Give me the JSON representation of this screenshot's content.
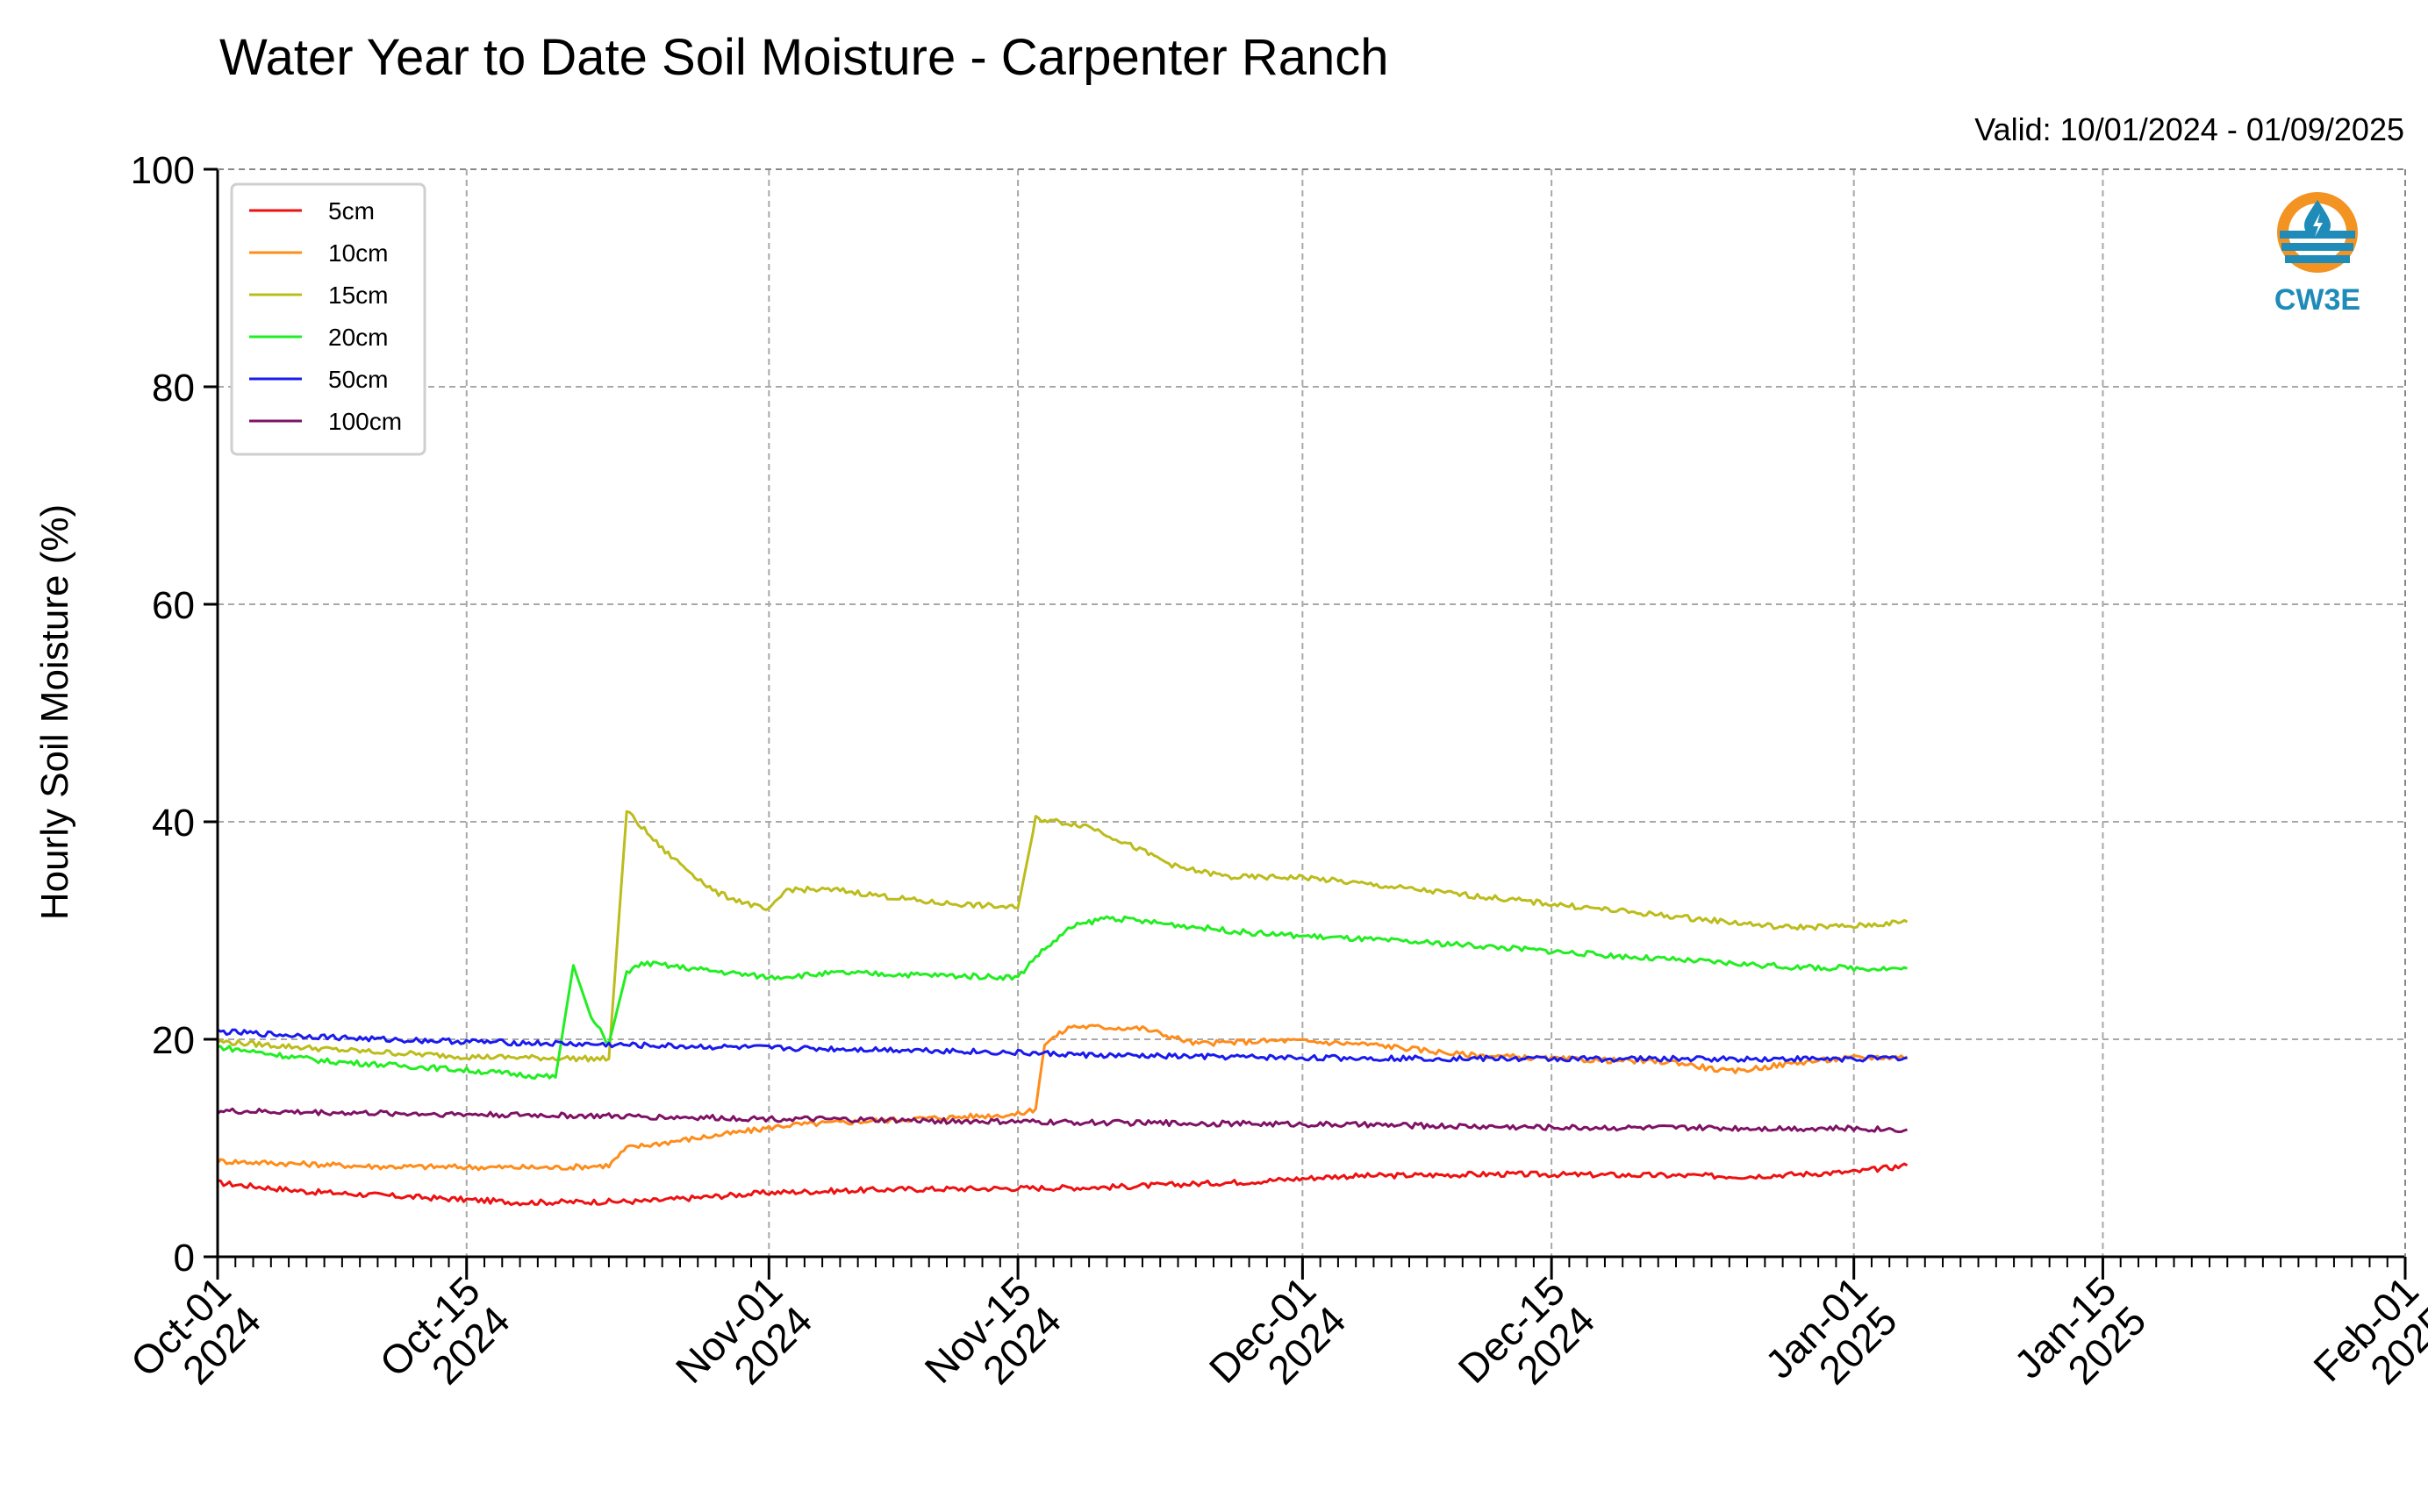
{
  "chart_data": {
    "type": "line",
    "title": "Water Year to Date Soil Moisture - Carpenter Ranch",
    "subtitle": "Valid: 10/01/2024 - 01/09/2025",
    "xlabel": "",
    "ylabel": "Hourly Soil Moisture (%)",
    "ylim": [
      0,
      100
    ],
    "xlim": [
      "2024-10-01",
      "2025-02-01"
    ],
    "yticks": [
      0,
      20,
      40,
      60,
      80,
      100
    ],
    "xticks": [
      {
        "date": "2024-10-01",
        "line1": "Oct-01",
        "line2": "2024"
      },
      {
        "date": "2024-10-15",
        "line1": "Oct-15",
        "line2": "2024"
      },
      {
        "date": "2024-11-01",
        "line1": "Nov-01",
        "line2": "2024"
      },
      {
        "date": "2024-11-15",
        "line1": "Nov-15",
        "line2": "2024"
      },
      {
        "date": "2024-12-01",
        "line1": "Dec-01",
        "line2": "2024"
      },
      {
        "date": "2024-12-15",
        "line1": "Dec-15",
        "line2": "2024"
      },
      {
        "date": "2025-01-01",
        "line1": "Jan-01",
        "line2": "2025"
      },
      {
        "date": "2025-01-15",
        "line1": "Jan-15",
        "line2": "2025"
      },
      {
        "date": "2025-02-01",
        "line1": "Feb-01",
        "line2": "2025"
      }
    ],
    "grid": true,
    "legend_position": "top-left",
    "logo_text": "CW3E",
    "series": [
      {
        "name": "5cm",
        "color": "#ee1111",
        "points": [
          [
            "2024-10-01",
            6.8
          ],
          [
            "2024-10-06",
            6.0
          ],
          [
            "2024-10-12",
            5.5
          ],
          [
            "2024-10-18",
            5.0
          ],
          [
            "2024-10-25",
            5.1
          ],
          [
            "2024-11-01",
            5.9
          ],
          [
            "2024-11-08",
            6.2
          ],
          [
            "2024-11-15",
            6.3
          ],
          [
            "2024-11-20",
            6.4
          ],
          [
            "2024-11-28",
            6.9
          ],
          [
            "2024-12-03",
            7.4
          ],
          [
            "2024-12-12",
            7.6
          ],
          [
            "2024-12-20",
            7.5
          ],
          [
            "2024-12-26",
            7.4
          ],
          [
            "2025-01-01",
            7.8
          ],
          [
            "2025-01-04",
            8.4
          ]
        ]
      },
      {
        "name": "10cm",
        "color": "#ff8c1a",
        "points": [
          [
            "2024-10-01",
            8.8
          ],
          [
            "2024-10-10",
            8.3
          ],
          [
            "2024-10-20",
            8.2
          ],
          [
            "2024-10-23",
            8.4
          ],
          [
            "2024-10-24",
            10.0
          ],
          [
            "2024-10-27",
            10.7
          ],
          [
            "2024-10-31",
            11.6
          ],
          [
            "2024-11-02",
            12.1
          ],
          [
            "2024-11-08",
            12.6
          ],
          [
            "2024-11-15",
            13.1
          ],
          [
            "2024-11-16",
            13.6
          ],
          [
            "2024-11-16.5",
            19.6
          ],
          [
            "2024-11-18",
            21.2
          ],
          [
            "2024-11-22",
            21.0
          ],
          [
            "2024-11-25",
            19.6
          ],
          [
            "2024-11-30",
            19.9
          ],
          [
            "2024-12-05",
            19.5
          ],
          [
            "2024-12-10",
            18.6
          ],
          [
            "2024-12-15",
            18.2
          ],
          [
            "2024-12-22",
            17.9
          ],
          [
            "2024-12-25",
            17.0
          ],
          [
            "2024-12-29",
            17.9
          ],
          [
            "2025-01-01",
            18.3
          ],
          [
            "2025-01-04",
            18.4
          ]
        ]
      },
      {
        "name": "15cm",
        "color": "#bcbc1c",
        "points": [
          [
            "2024-10-01",
            19.8
          ],
          [
            "2024-10-08",
            19.0
          ],
          [
            "2024-10-15",
            18.4
          ],
          [
            "2024-10-23",
            18.2
          ],
          [
            "2024-10-24",
            41.0
          ],
          [
            "2024-10-26",
            37.5
          ],
          [
            "2024-10-29",
            33.5
          ],
          [
            "2024-11-01",
            31.8
          ],
          [
            "2024-11-02",
            33.8
          ],
          [
            "2024-11-05",
            33.7
          ],
          [
            "2024-11-10",
            32.6
          ],
          [
            "2024-11-15",
            32.1
          ],
          [
            "2024-11-16",
            40.3
          ],
          [
            "2024-11-19",
            39.6
          ],
          [
            "2024-11-24",
            35.8
          ],
          [
            "2024-11-27",
            34.9
          ],
          [
            "2024-12-01",
            34.9
          ],
          [
            "2024-12-10",
            33.3
          ],
          [
            "2024-12-20",
            31.6
          ],
          [
            "2024-12-28",
            30.3
          ],
          [
            "2025-01-01",
            30.4
          ],
          [
            "2025-01-04",
            30.8
          ]
        ]
      },
      {
        "name": "20cm",
        "color": "#22ee22",
        "points": [
          [
            "2024-10-01",
            19.3
          ],
          [
            "2024-10-07",
            18.0
          ],
          [
            "2024-10-13",
            17.4
          ],
          [
            "2024-10-20",
            16.5
          ],
          [
            "2024-10-21",
            26.8
          ],
          [
            "2024-10-22",
            22.0
          ],
          [
            "2024-10-23",
            19.6
          ],
          [
            "2024-10-24",
            26.2
          ],
          [
            "2024-10-25",
            27.0
          ],
          [
            "2024-11-01",
            25.7
          ],
          [
            "2024-11-05",
            26.1
          ],
          [
            "2024-11-15",
            25.7
          ],
          [
            "2024-11-16",
            27.6
          ],
          [
            "2024-11-18",
            30.3
          ],
          [
            "2024-11-20",
            31.2
          ],
          [
            "2024-11-28",
            29.8
          ],
          [
            "2024-12-01",
            29.5
          ],
          [
            "2024-12-10",
            28.7
          ],
          [
            "2024-12-20",
            27.5
          ],
          [
            "2024-12-29",
            26.6
          ],
          [
            "2025-01-04",
            26.5
          ]
        ]
      },
      {
        "name": "50cm",
        "color": "#1a1aee",
        "points": [
          [
            "2024-10-01",
            20.7
          ],
          [
            "2024-10-10",
            20.0
          ],
          [
            "2024-10-20",
            19.6
          ],
          [
            "2024-11-01",
            19.2
          ],
          [
            "2024-11-10",
            19.0
          ],
          [
            "2024-11-20",
            18.5
          ],
          [
            "2024-12-01",
            18.3
          ],
          [
            "2024-12-15",
            18.2
          ],
          [
            "2025-01-01",
            18.2
          ],
          [
            "2025-01-04",
            18.3
          ]
        ]
      },
      {
        "name": "100cm",
        "color": "#7f1265",
        "points": [
          [
            "2024-10-01",
            13.4
          ],
          [
            "2024-10-10",
            13.2
          ],
          [
            "2024-10-20",
            13.0
          ],
          [
            "2024-11-01",
            12.7
          ],
          [
            "2024-11-15",
            12.4
          ],
          [
            "2024-12-01",
            12.2
          ],
          [
            "2024-12-15",
            11.9
          ],
          [
            "2025-01-01",
            11.8
          ],
          [
            "2025-01-04",
            11.7
          ]
        ]
      }
    ]
  }
}
